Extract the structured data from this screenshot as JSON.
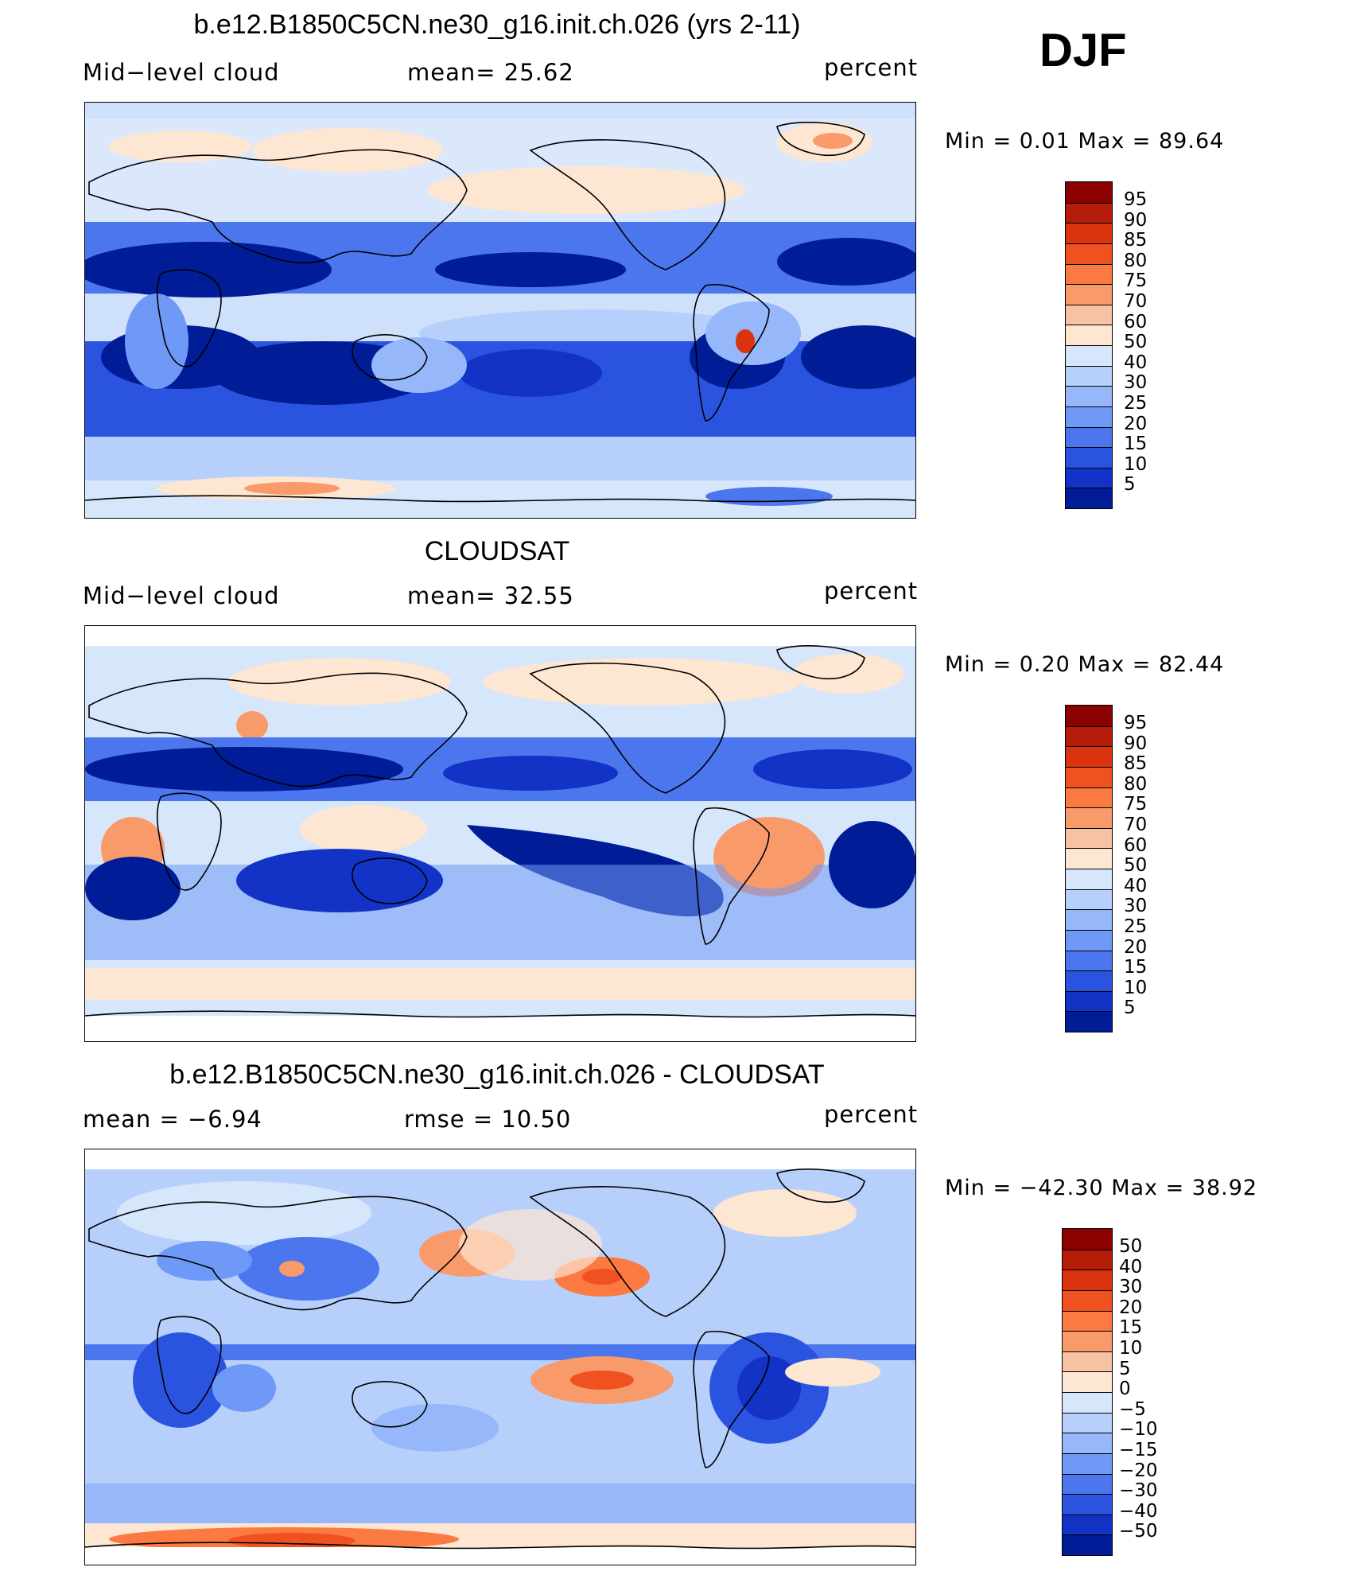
{
  "season": "DJF",
  "panels": [
    {
      "title": "b.e12.B1850C5CN.ne30_g16.init.ch.026 (yrs 2-11)",
      "left_label": "Mid−level cloud",
      "center_label": "mean=   25.62",
      "units": "percent",
      "minmax": "Min =     0.01  Max =    89.64"
    },
    {
      "title": "CLOUDSAT",
      "left_label": "Mid−level cloud",
      "center_label": "mean=   32.55",
      "units": "percent",
      "minmax": "Min =     0.20  Max =    82.44"
    },
    {
      "title": "b.e12.B1850C5CN.ne30_g16.init.ch.026 - CLOUDSAT",
      "left_label": "mean  =    −6.94",
      "center_label": "rmse  =    10.50",
      "units": "percent",
      "minmax": "Min  = −42.30  Max  =    38.92"
    }
  ],
  "colorbars": {
    "abs": {
      "labels": [
        "95",
        "90",
        "85",
        "80",
        "75",
        "70",
        "60",
        "50",
        "40",
        "30",
        "25",
        "20",
        "15",
        "10",
        "5"
      ],
      "colors": [
        "#8b0000",
        "#b61c0a",
        "#d9340d",
        "#ef5121",
        "#fb7a41",
        "#f99a6a",
        "#f7c2a3",
        "#fde6d2",
        "#d6e6fb",
        "#b7d0fb",
        "#96b8fa",
        "#6f99f6",
        "#4c76ee",
        "#2a54e0",
        "#1233c6",
        "#001c96"
      ]
    },
    "diff": {
      "labels": [
        "50",
        "40",
        "30",
        "20",
        "15",
        "10",
        "5",
        "0",
        "−5",
        "−10",
        "−15",
        "−20",
        "−30",
        "−40",
        "−50"
      ],
      "colors": [
        "#8b0000",
        "#b61c0a",
        "#d9340d",
        "#ef5121",
        "#fb7a41",
        "#f99a6a",
        "#f7c2a3",
        "#fde6d2",
        "#d6e6fb",
        "#b7d0fb",
        "#96b8fa",
        "#6f99f6",
        "#4c76ee",
        "#2a54e0",
        "#1233c6",
        "#001c96"
      ]
    }
  },
  "chart_data": [
    {
      "type": "heatmap",
      "title": "b.e12.B1850C5CN.ne30_g16.init.ch.026 (yrs 2-11)",
      "variable": "Mid-level cloud",
      "units": "percent",
      "mean": 25.62,
      "min": 0.01,
      "max": 89.64,
      "colorbar_levels": [
        5,
        10,
        15,
        20,
        25,
        30,
        40,
        50,
        60,
        70,
        75,
        80,
        85,
        90,
        95
      ]
    },
    {
      "type": "heatmap",
      "title": "CLOUDSAT",
      "variable": "Mid-level cloud",
      "units": "percent",
      "mean": 32.55,
      "min": 0.2,
      "max": 82.44,
      "colorbar_levels": [
        5,
        10,
        15,
        20,
        25,
        30,
        40,
        50,
        60,
        70,
        75,
        80,
        85,
        90,
        95
      ]
    },
    {
      "type": "heatmap",
      "title": "b.e12.B1850C5CN.ne30_g16.init.ch.026 - CLOUDSAT",
      "units": "percent",
      "mean": -6.94,
      "rmse": 10.5,
      "min": -42.3,
      "max": 38.92,
      "colorbar_levels": [
        -50,
        -40,
        -30,
        -20,
        -15,
        -10,
        -5,
        0,
        5,
        10,
        15,
        20,
        30,
        40,
        50
      ]
    }
  ]
}
